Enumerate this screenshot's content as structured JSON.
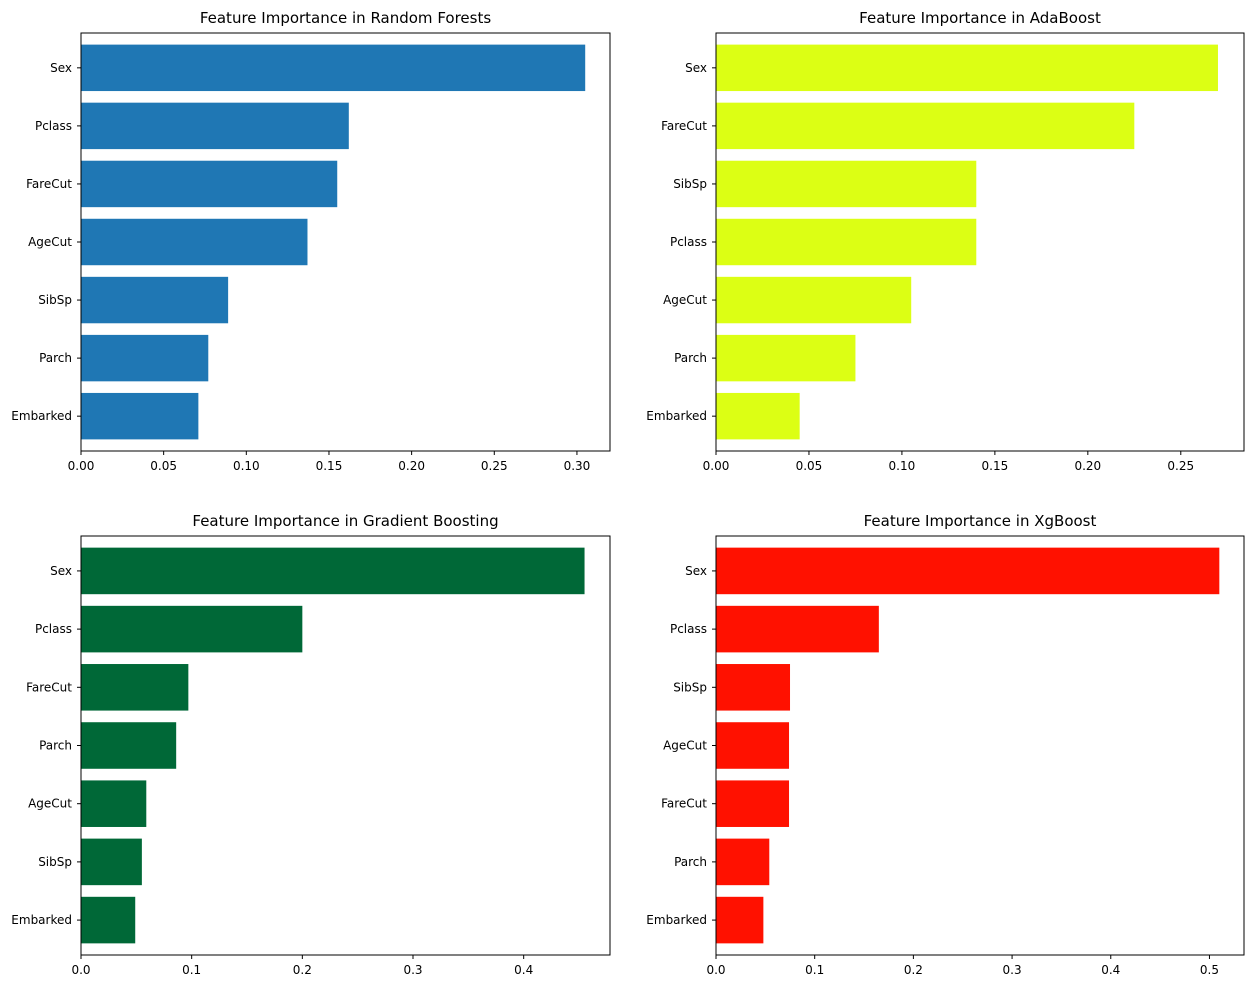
{
  "chart_data": [
    {
      "type": "bar",
      "orientation": "horizontal",
      "title": "Feature Importance in Random Forests",
      "color": "#1f77b4",
      "categories": [
        "Sex",
        "Pclass",
        "FareCut",
        "AgeCut",
        "SibSp",
        "Parch",
        "Embarked"
      ],
      "values": [
        0.305,
        0.162,
        0.155,
        0.137,
        0.089,
        0.077,
        0.071
      ],
      "xlim": [
        0,
        0.32
      ],
      "xticks": [
        0,
        0.05,
        0.1,
        0.15,
        0.2,
        0.25,
        0.3
      ],
      "xtick_labels": [
        "0.00",
        "0.05",
        "0.10",
        "0.15",
        "0.20",
        "0.25",
        "0.30"
      ],
      "xlabel": "",
      "ylabel": "",
      "grid": false
    },
    {
      "type": "bar",
      "orientation": "horizontal",
      "title": "Feature Importance in AdaBoost",
      "color": "#dcff14",
      "categories": [
        "Sex",
        "FareCut",
        "SibSp",
        "Pclass",
        "AgeCut",
        "Parch",
        "Embarked"
      ],
      "values": [
        0.27,
        0.225,
        0.14,
        0.14,
        0.105,
        0.075,
        0.045
      ],
      "xlim": [
        0,
        0.284
      ],
      "xticks": [
        0,
        0.05,
        0.1,
        0.15,
        0.2,
        0.25
      ],
      "xtick_labels": [
        "0.00",
        "0.05",
        "0.10",
        "0.15",
        "0.20",
        "0.25"
      ],
      "xlabel": "",
      "ylabel": "",
      "grid": false
    },
    {
      "type": "bar",
      "orientation": "horizontal",
      "title": "Feature Importance in Gradient Boosting",
      "color": "#006837",
      "categories": [
        "Sex",
        "Pclass",
        "FareCut",
        "Parch",
        "AgeCut",
        "SibSp",
        "Embarked"
      ],
      "values": [
        0.455,
        0.2,
        0.097,
        0.086,
        0.059,
        0.055,
        0.049
      ],
      "xlim": [
        0,
        0.478
      ],
      "xticks": [
        0,
        0.1,
        0.2,
        0.3,
        0.4
      ],
      "xtick_labels": [
        "0.0",
        "0.1",
        "0.2",
        "0.3",
        "0.4"
      ],
      "xlabel": "",
      "ylabel": "",
      "grid": false
    },
    {
      "type": "bar",
      "orientation": "horizontal",
      "title": "Feature Importance in XgBoost",
      "color": "#ff1100",
      "categories": [
        "Sex",
        "Pclass",
        "SibSp",
        "AgeCut",
        "FareCut",
        "Parch",
        "Embarked"
      ],
      "values": [
        0.51,
        0.165,
        0.075,
        0.074,
        0.074,
        0.054,
        0.048
      ],
      "xlim": [
        0,
        0.535
      ],
      "xticks": [
        0,
        0.1,
        0.2,
        0.3,
        0.4,
        0.5
      ],
      "xtick_labels": [
        "0.0",
        "0.1",
        "0.2",
        "0.3",
        "0.4",
        "0.5"
      ],
      "xlabel": "",
      "ylabel": "",
      "grid": false
    }
  ]
}
